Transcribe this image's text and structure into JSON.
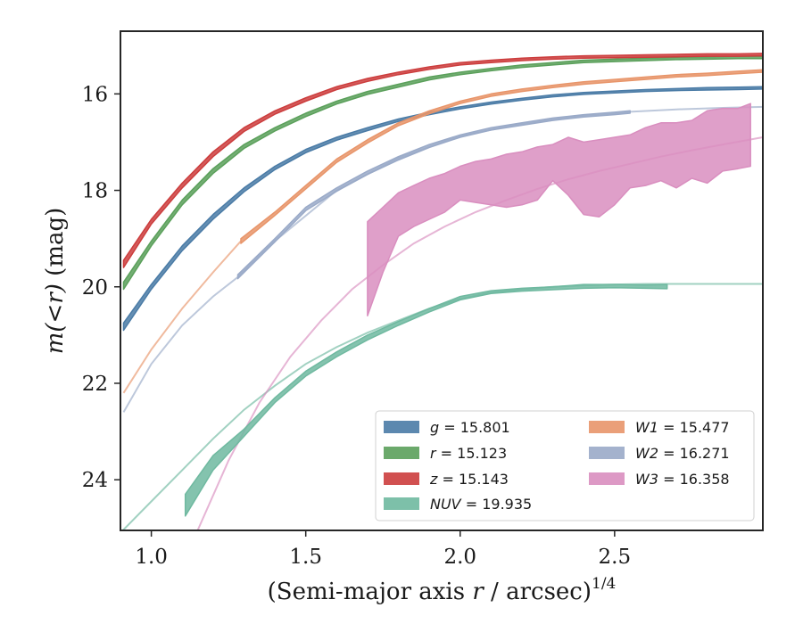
{
  "chart_data": {
    "type": "area",
    "xlabel": "(Semi-major axis r / arcsec)^1/4",
    "xlabel_parts": {
      "prefix": "(Semi-major axis ",
      "var": "r",
      "mid": " / arcsec)",
      "sup": "1/4"
    },
    "ylabel": "m(<r) (mag)",
    "ylabel_parts": {
      "main": "m(<r)",
      "unit": " (mag)"
    },
    "xlim": [
      0.9,
      2.98
    ],
    "ylim": [
      25.05,
      14.7
    ],
    "y_inverted": true,
    "xticks": [
      1.0,
      1.5,
      2.0,
      2.5
    ],
    "xtick_labels": [
      "1.0",
      "1.5",
      "2.0",
      "2.5"
    ],
    "yticks": [
      16,
      18,
      20,
      22,
      24
    ],
    "ytick_labels": [
      "16",
      "18",
      "20",
      "22",
      "24"
    ],
    "grid": false,
    "legend_placement": "lower-right",
    "series": [
      {
        "key": "g",
        "label": "g = 15.801",
        "color": "#4a7ba6",
        "band_x": [
          0.91,
          1.0,
          1.1,
          1.2,
          1.3,
          1.4,
          1.5,
          1.6,
          1.7,
          1.8,
          1.9,
          2.0,
          2.1,
          2.2,
          2.3,
          2.4,
          2.5,
          2.6,
          2.7,
          2.8,
          2.9,
          2.98
        ],
        "band_upper": [
          20.75,
          19.95,
          19.15,
          18.5,
          17.95,
          17.5,
          17.15,
          16.9,
          16.7,
          16.52,
          16.38,
          16.27,
          16.17,
          16.09,
          16.02,
          15.97,
          15.94,
          15.91,
          15.89,
          15.87,
          15.86,
          15.85
        ],
        "band_lower": [
          20.9,
          20.05,
          19.25,
          18.6,
          18.03,
          17.57,
          17.22,
          16.96,
          16.76,
          16.57,
          16.43,
          16.31,
          16.21,
          16.13,
          16.06,
          16.01,
          15.98,
          15.95,
          15.93,
          15.92,
          15.91,
          15.9
        ]
      },
      {
        "key": "r",
        "label": "r = 15.123",
        "color": "#5ba05b",
        "band_x": [
          0.91,
          1.0,
          1.1,
          1.2,
          1.3,
          1.4,
          1.5,
          1.6,
          1.7,
          1.8,
          1.9,
          2.0,
          2.1,
          2.2,
          2.3,
          2.4,
          2.5,
          2.6,
          2.7,
          2.8,
          2.9,
          2.98
        ],
        "band_upper": [
          19.9,
          19.05,
          18.2,
          17.55,
          17.05,
          16.7,
          16.4,
          16.15,
          15.95,
          15.8,
          15.65,
          15.55,
          15.47,
          15.4,
          15.35,
          15.3,
          15.28,
          15.26,
          15.24,
          15.23,
          15.22,
          15.22
        ],
        "band_lower": [
          20.05,
          19.15,
          18.3,
          17.65,
          17.13,
          16.77,
          16.47,
          16.21,
          16.01,
          15.86,
          15.71,
          15.6,
          15.52,
          15.45,
          15.4,
          15.35,
          15.33,
          15.31,
          15.29,
          15.28,
          15.27,
          15.27
        ]
      },
      {
        "key": "z",
        "label": "z = 15.143",
        "color": "#cc3d3d",
        "band_x": [
          0.91,
          1.0,
          1.1,
          1.2,
          1.3,
          1.4,
          1.5,
          1.6,
          1.7,
          1.8,
          1.9,
          2.0,
          2.1,
          2.2,
          2.3,
          2.4,
          2.5,
          2.6,
          2.7,
          2.8,
          2.9,
          2.98
        ],
        "band_upper": [
          19.45,
          18.6,
          17.85,
          17.2,
          16.7,
          16.35,
          16.08,
          15.85,
          15.68,
          15.55,
          15.44,
          15.35,
          15.3,
          15.26,
          15.23,
          15.21,
          15.2,
          15.19,
          15.18,
          15.17,
          15.17,
          15.16
        ],
        "band_lower": [
          19.6,
          18.7,
          17.95,
          17.3,
          16.78,
          16.42,
          16.15,
          15.91,
          15.74,
          15.6,
          15.49,
          15.4,
          15.35,
          15.31,
          15.28,
          15.26,
          15.25,
          15.24,
          15.23,
          15.22,
          15.22,
          15.21
        ]
      },
      {
        "key": "NUV",
        "label": "NUV = 19.935",
        "color": "#6fb9a0",
        "band_x": [
          1.11,
          1.2,
          1.3,
          1.4,
          1.5,
          1.6,
          1.7,
          1.8,
          1.9,
          2.0,
          2.1,
          2.2,
          2.3,
          2.4,
          2.5,
          2.6,
          2.67
        ],
        "band_upper": [
          24.3,
          23.5,
          22.95,
          22.3,
          21.75,
          21.35,
          21.0,
          20.72,
          20.45,
          20.2,
          20.08,
          20.03,
          20.0,
          19.95,
          19.95,
          19.96,
          19.95
        ],
        "band_lower": [
          24.75,
          23.8,
          23.1,
          22.4,
          21.85,
          21.45,
          21.1,
          20.8,
          20.52,
          20.27,
          20.14,
          20.09,
          20.06,
          20.03,
          20.02,
          20.03,
          20.04
        ],
        "model_x": [
          0.9,
          1.0,
          1.1,
          1.2,
          1.3,
          1.4,
          1.5,
          1.6,
          1.7,
          1.8,
          1.9,
          2.0,
          2.1,
          2.2,
          2.3,
          2.4,
          2.5,
          2.6,
          2.7,
          2.8,
          2.9,
          2.98
        ],
        "model_y": [
          25.1,
          24.45,
          23.8,
          23.15,
          22.55,
          22.05,
          21.6,
          21.25,
          20.95,
          20.7,
          20.45,
          20.25,
          20.12,
          20.05,
          20.0,
          19.97,
          19.95,
          19.94,
          19.94,
          19.94,
          19.94,
          19.94
        ]
      },
      {
        "key": "W1",
        "label": "W1 = 15.477",
        "color": "#e8956a",
        "band_x": [
          1.29,
          1.4,
          1.5,
          1.6,
          1.7,
          1.8,
          1.9,
          2.0,
          2.1,
          2.2,
          2.3,
          2.4,
          2.5,
          2.6,
          2.7,
          2.8,
          2.9,
          2.98
        ],
        "band_upper": [
          19.0,
          18.45,
          17.9,
          17.35,
          16.95,
          16.6,
          16.35,
          16.15,
          16.0,
          15.9,
          15.82,
          15.75,
          15.7,
          15.65,
          15.6,
          15.57,
          15.53,
          15.5
        ],
        "band_lower": [
          19.1,
          18.52,
          17.97,
          17.42,
          17.02,
          16.66,
          16.41,
          16.2,
          16.05,
          15.95,
          15.87,
          15.8,
          15.75,
          15.7,
          15.65,
          15.62,
          15.58,
          15.55
        ],
        "model_x": [
          0.91,
          1.0,
          1.1,
          1.2,
          1.29
        ],
        "model_y": [
          22.2,
          21.3,
          20.45,
          19.7,
          19.05
        ]
      },
      {
        "key": "W2",
        "label": "W2 = 16.271",
        "color": "#9aaac8",
        "band_x": [
          1.28,
          1.4,
          1.5,
          1.6,
          1.7,
          1.8,
          1.9,
          2.0,
          2.1,
          2.2,
          2.3,
          2.4,
          2.5,
          2.55
        ],
        "band_upper": [
          19.75,
          19.0,
          18.35,
          17.95,
          17.6,
          17.3,
          17.05,
          16.85,
          16.7,
          16.6,
          16.5,
          16.43,
          16.38,
          16.35
        ],
        "band_lower": [
          19.83,
          19.07,
          18.42,
          18.02,
          17.67,
          17.37,
          17.11,
          16.9,
          16.75,
          16.65,
          16.55,
          16.48,
          16.43,
          16.4
        ],
        "model_x": [
          0.91,
          1.0,
          1.1,
          1.2,
          1.28,
          1.4,
          1.6,
          1.8,
          2.0,
          2.2,
          2.4,
          2.55,
          2.7,
          2.85,
          2.98
        ],
        "model_y": [
          22.6,
          21.6,
          20.8,
          20.2,
          19.8,
          19.05,
          18.0,
          17.33,
          16.87,
          16.62,
          16.45,
          16.37,
          16.32,
          16.29,
          16.27
        ]
      },
      {
        "key": "W3",
        "label": "W3 = 16.358",
        "color": "#d98ebf",
        "band_x": [
          1.7,
          1.75,
          1.8,
          1.85,
          1.9,
          1.95,
          2.0,
          2.05,
          2.1,
          2.15,
          2.2,
          2.25,
          2.3,
          2.35,
          2.4,
          2.45,
          2.5,
          2.55,
          2.6,
          2.65,
          2.7,
          2.75,
          2.8,
          2.85,
          2.9,
          2.94
        ],
        "band_upper": [
          18.65,
          18.35,
          18.05,
          17.9,
          17.75,
          17.65,
          17.5,
          17.4,
          17.35,
          17.25,
          17.2,
          17.1,
          17.05,
          16.9,
          17.0,
          16.95,
          16.9,
          16.85,
          16.7,
          16.6,
          16.6,
          16.55,
          16.35,
          16.3,
          16.3,
          16.2
        ],
        "band_lower": [
          20.6,
          19.7,
          18.95,
          18.75,
          18.6,
          18.45,
          18.2,
          18.25,
          18.3,
          18.35,
          18.3,
          18.2,
          17.8,
          18.1,
          18.5,
          18.55,
          18.3,
          17.95,
          17.9,
          17.8,
          17.95,
          17.75,
          17.85,
          17.6,
          17.55,
          17.5
        ],
        "model_x": [
          1.15,
          1.25,
          1.35,
          1.45,
          1.55,
          1.65,
          1.75,
          1.85,
          1.95,
          2.05,
          2.15,
          2.25,
          2.35,
          2.45,
          2.55,
          2.65,
          2.75,
          2.85,
          2.98
        ],
        "model_y": [
          25.05,
          23.6,
          22.4,
          21.45,
          20.7,
          20.05,
          19.55,
          19.1,
          18.75,
          18.45,
          18.2,
          17.97,
          17.77,
          17.6,
          17.45,
          17.3,
          17.17,
          17.05,
          16.9
        ]
      }
    ]
  }
}
